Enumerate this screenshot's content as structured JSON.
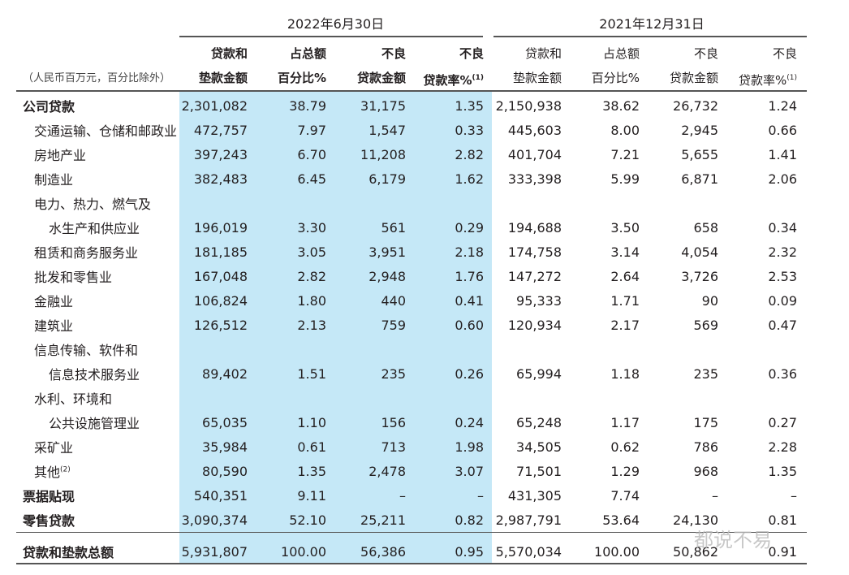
{
  "header": {
    "period_current": "2022年6月30日",
    "period_prior": "2021年12月31日",
    "unit_note": "（人民币百万元，百分比除外）",
    "columns": [
      [
        "贷款和",
        "垫款金额"
      ],
      [
        "占总额",
        "百分比%"
      ],
      [
        "不良",
        "贷款金额"
      ],
      [
        "不良",
        "贷款率%"
      ],
      [
        "贷款和",
        "垫款金额"
      ],
      [
        "占总额",
        "百分比%"
      ],
      [
        "不良",
        "贷款金额"
      ],
      [
        "不良",
        "贷款率%"
      ]
    ],
    "footnote_mark": "(1)"
  },
  "rows": [
    {
      "label": "公司贷款",
      "level": 0,
      "values": [
        "2,301,082",
        "38.79",
        "31,175",
        "1.35",
        "2,150,938",
        "38.62",
        "26,732",
        "1.24"
      ]
    },
    {
      "label": "交通运输、仓储和邮政业",
      "level": 1,
      "values": [
        "472,757",
        "7.97",
        "1,547",
        "0.33",
        "445,603",
        "8.00",
        "2,945",
        "0.66"
      ]
    },
    {
      "label": "房地产业",
      "level": 1,
      "values": [
        "397,243",
        "6.70",
        "11,208",
        "2.82",
        "401,704",
        "7.21",
        "5,655",
        "1.41"
      ]
    },
    {
      "label": "制造业",
      "level": 1,
      "values": [
        "382,483",
        "6.45",
        "6,179",
        "1.62",
        "333,398",
        "5.99",
        "6,871",
        "2.06"
      ]
    },
    {
      "label": "电力、热力、燃气及",
      "level": 1,
      "values": [
        "",
        "",
        "",
        "",
        "",
        "",
        "",
        ""
      ]
    },
    {
      "label": "水生产和供应业",
      "level": 2,
      "values": [
        "196,019",
        "3.30",
        "561",
        "0.29",
        "194,688",
        "3.50",
        "658",
        "0.34"
      ]
    },
    {
      "label": "租赁和商务服务业",
      "level": 1,
      "values": [
        "181,185",
        "3.05",
        "3,951",
        "2.18",
        "174,758",
        "3.14",
        "4,054",
        "2.32"
      ]
    },
    {
      "label": "批发和零售业",
      "level": 1,
      "values": [
        "167,048",
        "2.82",
        "2,948",
        "1.76",
        "147,272",
        "2.64",
        "3,726",
        "2.53"
      ]
    },
    {
      "label": "金融业",
      "level": 1,
      "values": [
        "106,824",
        "1.80",
        "440",
        "0.41",
        "95,333",
        "1.71",
        "90",
        "0.09"
      ]
    },
    {
      "label": "建筑业",
      "level": 1,
      "values": [
        "126,512",
        "2.13",
        "759",
        "0.60",
        "120,934",
        "2.17",
        "569",
        "0.47"
      ]
    },
    {
      "label": "信息传输、软件和",
      "level": 1,
      "values": [
        "",
        "",
        "",
        "",
        "",
        "",
        "",
        ""
      ]
    },
    {
      "label": "信息技术服务业",
      "level": 2,
      "values": [
        "89,402",
        "1.51",
        "235",
        "0.26",
        "65,994",
        "1.18",
        "235",
        "0.36"
      ]
    },
    {
      "label": "水利、环境和",
      "level": 1,
      "values": [
        "",
        "",
        "",
        "",
        "",
        "",
        "",
        ""
      ]
    },
    {
      "label": "公共设施管理业",
      "level": 2,
      "values": [
        "65,035",
        "1.10",
        "156",
        "0.24",
        "65,248",
        "1.17",
        "175",
        "0.27"
      ]
    },
    {
      "label": "采矿业",
      "level": 1,
      "values": [
        "35,984",
        "0.61",
        "713",
        "1.98",
        "34,505",
        "0.62",
        "786",
        "2.28"
      ]
    },
    {
      "label": "其他",
      "level": 1,
      "note": "(2)",
      "values": [
        "80,590",
        "1.35",
        "2,478",
        "3.07",
        "71,501",
        "1.29",
        "968",
        "1.35"
      ]
    },
    {
      "label": "票据贴现",
      "level": 0,
      "values": [
        "540,351",
        "9.11",
        "–",
        "–",
        "431,305",
        "7.74",
        "–",
        "–"
      ]
    },
    {
      "label": "零售贷款",
      "level": 0,
      "values": [
        "3,090,374",
        "52.10",
        "25,211",
        "0.82",
        "2,987,791",
        "53.64",
        "24,130",
        "0.81"
      ]
    }
  ],
  "total": {
    "label": "贷款和垫款总额",
    "values": [
      "5,931,807",
      "100.00",
      "56,386",
      "0.95",
      "5,570,034",
      "100.00",
      "50,862",
      "0.91"
    ]
  },
  "watermark": "都说不易",
  "colors": {
    "highlight": "#c5e8f7",
    "rule": "#555555"
  }
}
